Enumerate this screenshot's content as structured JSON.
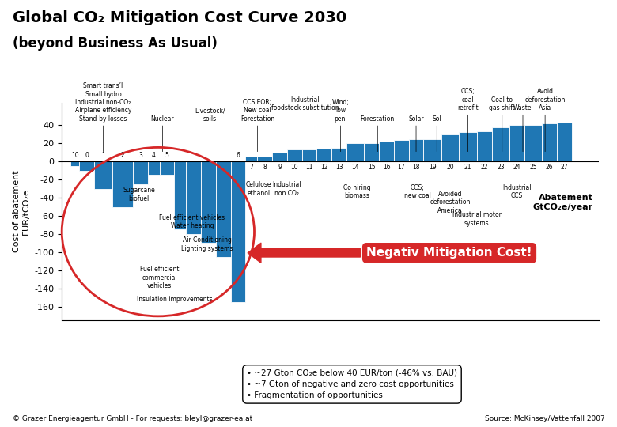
{
  "chart_data": {
    "type": "bar",
    "title": "Global CO₂ Mitigation Cost Curve 2030",
    "subtitle": "(beyond Business As Usual)",
    "ylabel": "Cost of abatement\nEUR/tCO₂e",
    "xlabel": "Abatement\nGtCO₂e/year",
    "categories": [
      "10",
      "0",
      "1",
      "2",
      "3",
      "4",
      "5",
      null,
      null,
      null,
      null,
      "6",
      "7",
      "8",
      "9",
      "10",
      "11",
      "12",
      "13",
      "14",
      "15",
      "16",
      "17",
      "18",
      "19",
      "20",
      "21",
      "22",
      "23",
      "24",
      "25",
      "26",
      "27"
    ],
    "x": [
      0.0,
      0.3,
      0.8,
      1.4,
      2.1,
      2.6,
      3.0,
      3.5,
      3.9,
      4.4,
      4.9,
      5.4,
      5.9,
      6.3,
      6.8,
      7.3,
      7.8,
      8.3,
      8.8,
      9.3,
      9.9,
      10.4,
      10.9,
      11.4,
      11.9,
      12.5,
      13.1,
      13.7,
      14.2,
      14.8,
      15.3,
      15.9,
      16.4
    ],
    "widths": [
      0.3,
      0.5,
      0.6,
      0.7,
      0.5,
      0.4,
      0.5,
      0.4,
      0.5,
      0.5,
      0.5,
      0.5,
      0.4,
      0.5,
      0.5,
      0.5,
      0.5,
      0.5,
      0.5,
      0.6,
      0.5,
      0.5,
      0.5,
      0.5,
      0.6,
      0.6,
      0.6,
      0.5,
      0.6,
      0.5,
      0.6,
      0.5,
      0.5
    ],
    "values": [
      -5,
      -10,
      -30,
      -50,
      -25,
      -15,
      -15,
      -75,
      -80,
      -90,
      -105,
      -155,
      5,
      5,
      10,
      13,
      13,
      14,
      15,
      20,
      20,
      22,
      24,
      25,
      25,
      30,
      32,
      33,
      38,
      40,
      40,
      42,
      43
    ],
    "xlim": [
      -0.3,
      17.8
    ],
    "ylim": [
      -175,
      65
    ],
    "yticks": [
      -160,
      -140,
      -120,
      -100,
      -80,
      -60,
      -40,
      -20,
      0,
      20,
      40
    ],
    "tick_labels": "y",
    "leader_annotations": [
      {
        "x": 1.1,
        "y": 43,
        "text": "Smart trans’l\nSmall hydro\nIndustrial non-CO₂\nAirplane efficiency\nStand-by losses"
      },
      {
        "x": 3.1,
        "y": 43,
        "text": "Nuclear"
      },
      {
        "x": 4.7,
        "y": 43,
        "text": "Livestock/\nsoils"
      },
      {
        "x": 6.3,
        "y": 43,
        "text": "CCS EOR;\nNew coal\nForestation"
      },
      {
        "x": 7.9,
        "y": 55,
        "text": "Industrial\nfoodstock substitution"
      },
      {
        "x": 9.1,
        "y": 43,
        "text": "Wind;\nlow\npen."
      },
      {
        "x": 10.35,
        "y": 43,
        "text": "Forestation"
      },
      {
        "x": 11.65,
        "y": 43,
        "text": "Solar"
      },
      {
        "x": 12.35,
        "y": 43,
        "text": "Sol"
      },
      {
        "x": 13.4,
        "y": 55,
        "text": "CCS;\ncoal\nretrofit"
      },
      {
        "x": 14.55,
        "y": 55,
        "text": "Coal to\ngas shift"
      },
      {
        "x": 15.25,
        "y": 55,
        "text": "Waste"
      },
      {
        "x": 16.0,
        "y": 55,
        "text": "Avoid\ndeforestation\nAsia"
      }
    ],
    "annotations": [
      {
        "x": 2.3,
        "y": -28,
        "text": "Sugarcane\nbiofuel"
      },
      {
        "x": 6.35,
        "y": -22,
        "text": "Celulose\nethanol"
      },
      {
        "x": 7.3,
        "y": -22,
        "text": "Industrial\nnon CO₂"
      },
      {
        "x": 4.1,
        "y": -58,
        "text": "Fuel efficient vehicles\nWater heating"
      },
      {
        "x": 4.6,
        "y": -83,
        "text": "Air Conditioning\nLighting systems"
      },
      {
        "x": 3.0,
        "y": -115,
        "text": "Fuel efficient\ncommercial\nvehicles"
      },
      {
        "x": 3.5,
        "y": -148,
        "text": "Insulation improvements"
      },
      {
        "x": 9.65,
        "y": -25,
        "text": "Co hiring\nbiomass"
      },
      {
        "x": 11.7,
        "y": -25,
        "text": "CCS;\nnew coal"
      },
      {
        "x": 12.8,
        "y": -32,
        "text": "Avoided\ndeforestation\nAmerica"
      },
      {
        "x": 15.05,
        "y": -25,
        "text": "Industrial\nCCS"
      },
      {
        "x": 13.7,
        "y": -55,
        "text": "Industrial motor\nsystems"
      }
    ],
    "callout": {
      "text": "Negativ Mitigation Cost!",
      "color": "#d62728"
    },
    "notes": [
      "• ~27 Gton CO₂e below 40 EUR/ton (-46% vs. BAU)",
      "• ~7 Gton of negative and zero cost opportunities",
      "• Fragmentation of opportunities"
    ],
    "copyright": "© Grazer Energieagentur GmbH - For requests: bleyl@grazer-ea.at",
    "source": "Source: McKinsey/Vattenfall 2007"
  }
}
